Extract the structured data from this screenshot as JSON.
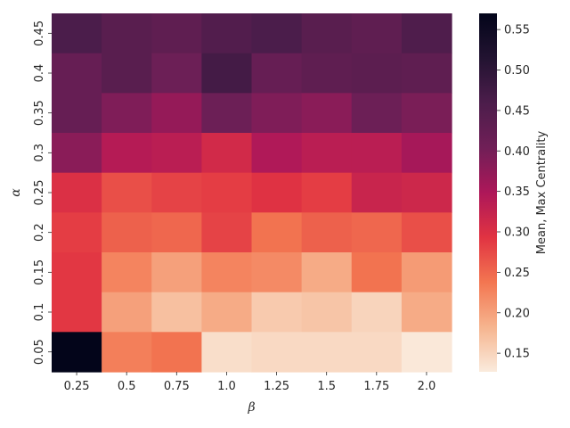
{
  "chart_data": {
    "type": "heatmap",
    "xlabel": "β",
    "ylabel": "α",
    "x_categories": [
      "0.25",
      "0.5",
      "0.75",
      "1.0",
      "1.25",
      "1.5",
      "1.75",
      "2.0"
    ],
    "y_categories": [
      "0.45",
      "0.4",
      "0.35",
      "0.3",
      "0.25",
      "0.2",
      "0.15",
      "0.1",
      "0.05"
    ],
    "values": [
      [
        0.46,
        0.44,
        0.43,
        0.45,
        0.46,
        0.44,
        0.43,
        0.455
      ],
      [
        0.42,
        0.44,
        0.41,
        0.47,
        0.42,
        0.43,
        0.435,
        0.43
      ],
      [
        0.42,
        0.39,
        0.37,
        0.41,
        0.39,
        0.38,
        0.41,
        0.395
      ],
      [
        0.38,
        0.34,
        0.335,
        0.31,
        0.345,
        0.335,
        0.335,
        0.355
      ],
      [
        0.3,
        0.27,
        0.28,
        0.285,
        0.295,
        0.285,
        0.32,
        0.315
      ],
      [
        0.285,
        0.255,
        0.25,
        0.28,
        0.24,
        0.255,
        0.25,
        0.27
      ],
      [
        0.29,
        0.225,
        0.2,
        0.225,
        0.22,
        0.19,
        0.24,
        0.205
      ],
      [
        0.29,
        0.2,
        0.17,
        0.19,
        0.16,
        0.165,
        0.15,
        0.19
      ],
      [
        0.57,
        0.23,
        0.24,
        0.14,
        0.145,
        0.145,
        0.145,
        0.13
      ]
    ],
    "colorbar": {
      "label": "Mean, Max Centrality",
      "range": [
        0.127,
        0.57
      ],
      "ticks": [
        "0.15",
        "0.20",
        "0.25",
        "0.30",
        "0.35",
        "0.40",
        "0.45",
        "0.50",
        "0.55"
      ],
      "colormap": "rocket",
      "orientation": "vertical",
      "placement": "right"
    },
    "grid": false
  }
}
